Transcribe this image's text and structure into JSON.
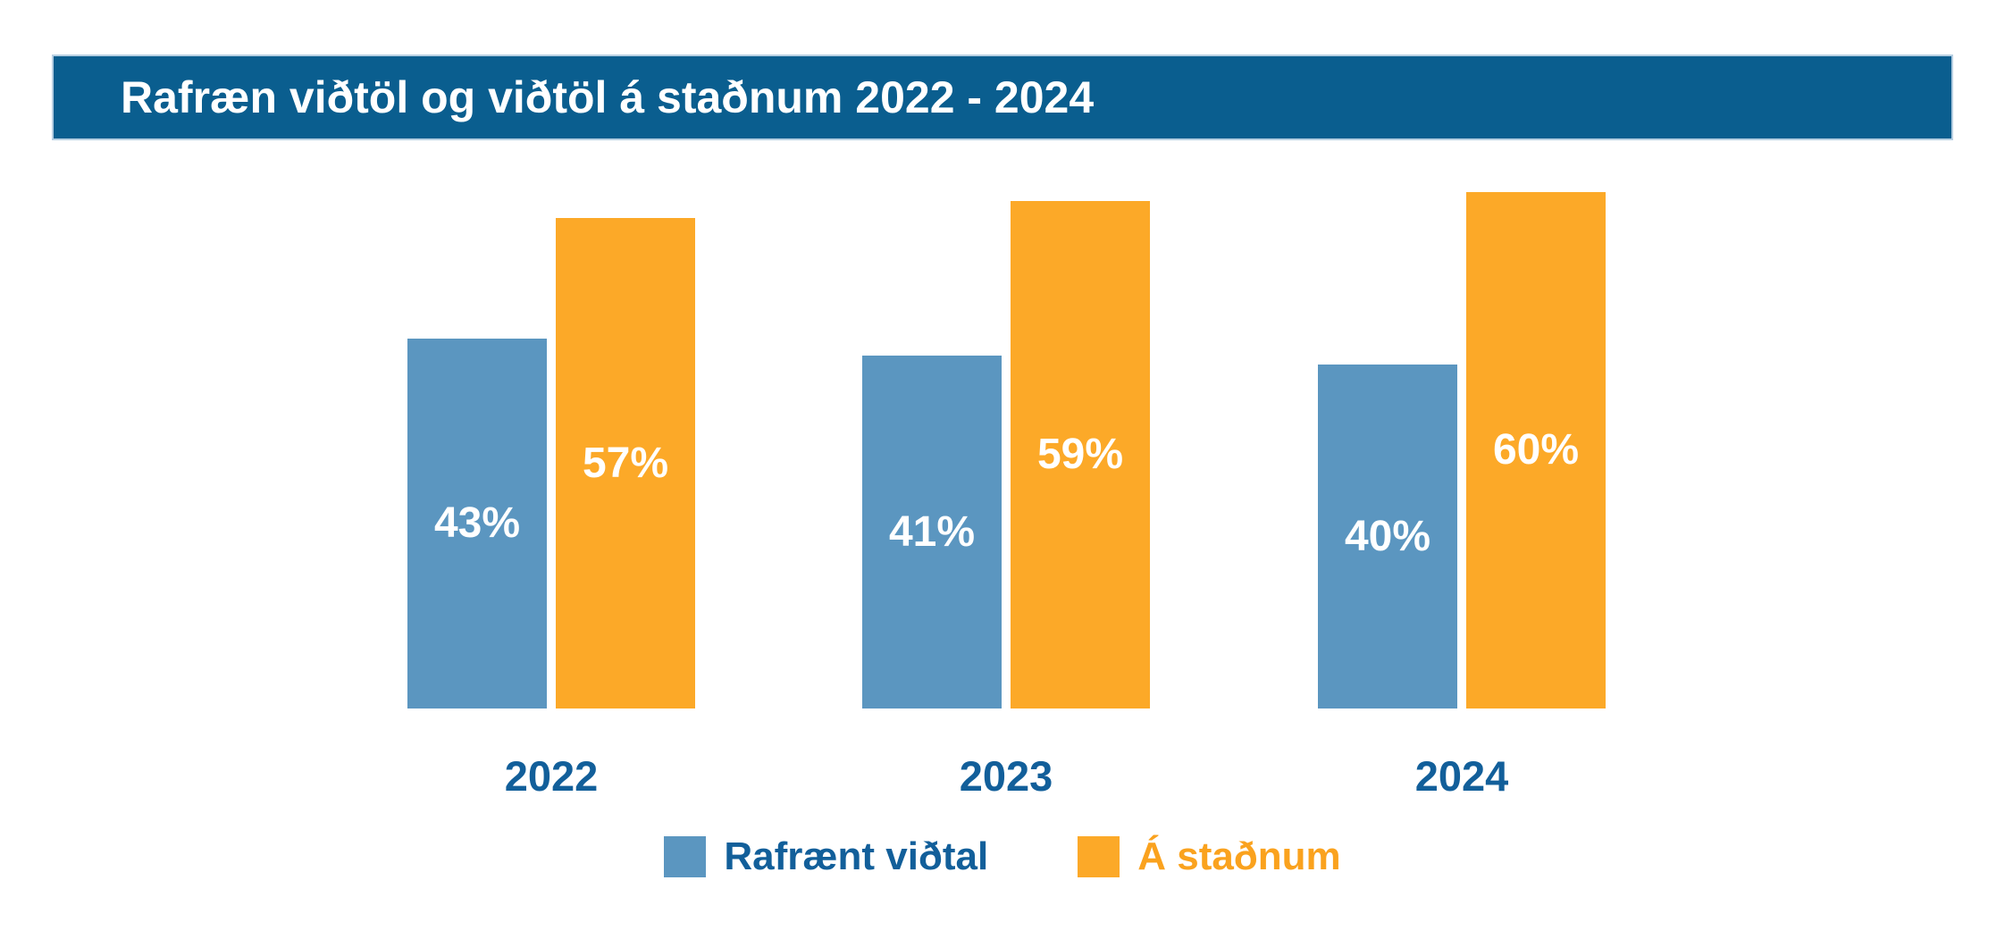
{
  "title": "Rafræn viðtöl og viðtöl á staðnum 2022 - 2024",
  "chart_data": {
    "type": "bar",
    "categories": [
      "2022",
      "2023",
      "2024"
    ],
    "series": [
      {
        "name": "Rafrænt viðtal",
        "color": "#5b96c0",
        "values": [
          43,
          41,
          40
        ]
      },
      {
        "name": "Á staðnum",
        "color": "#fca928",
        "values": [
          57,
          59,
          60
        ]
      }
    ],
    "value_suffix": "%",
    "value_labels_position": "inside-center",
    "xlabel": "",
    "ylabel": "",
    "grid": false,
    "axes_shown": false,
    "legend_position": "bottom-center"
  },
  "colors": {
    "header_bg": "#0a5e8f",
    "header_text": "#ffffff",
    "category_text": "#125f9a",
    "legend_blue_text": "#125f9a",
    "legend_orange_text": "#faa21e",
    "bar_value_text": "#ffffff"
  }
}
